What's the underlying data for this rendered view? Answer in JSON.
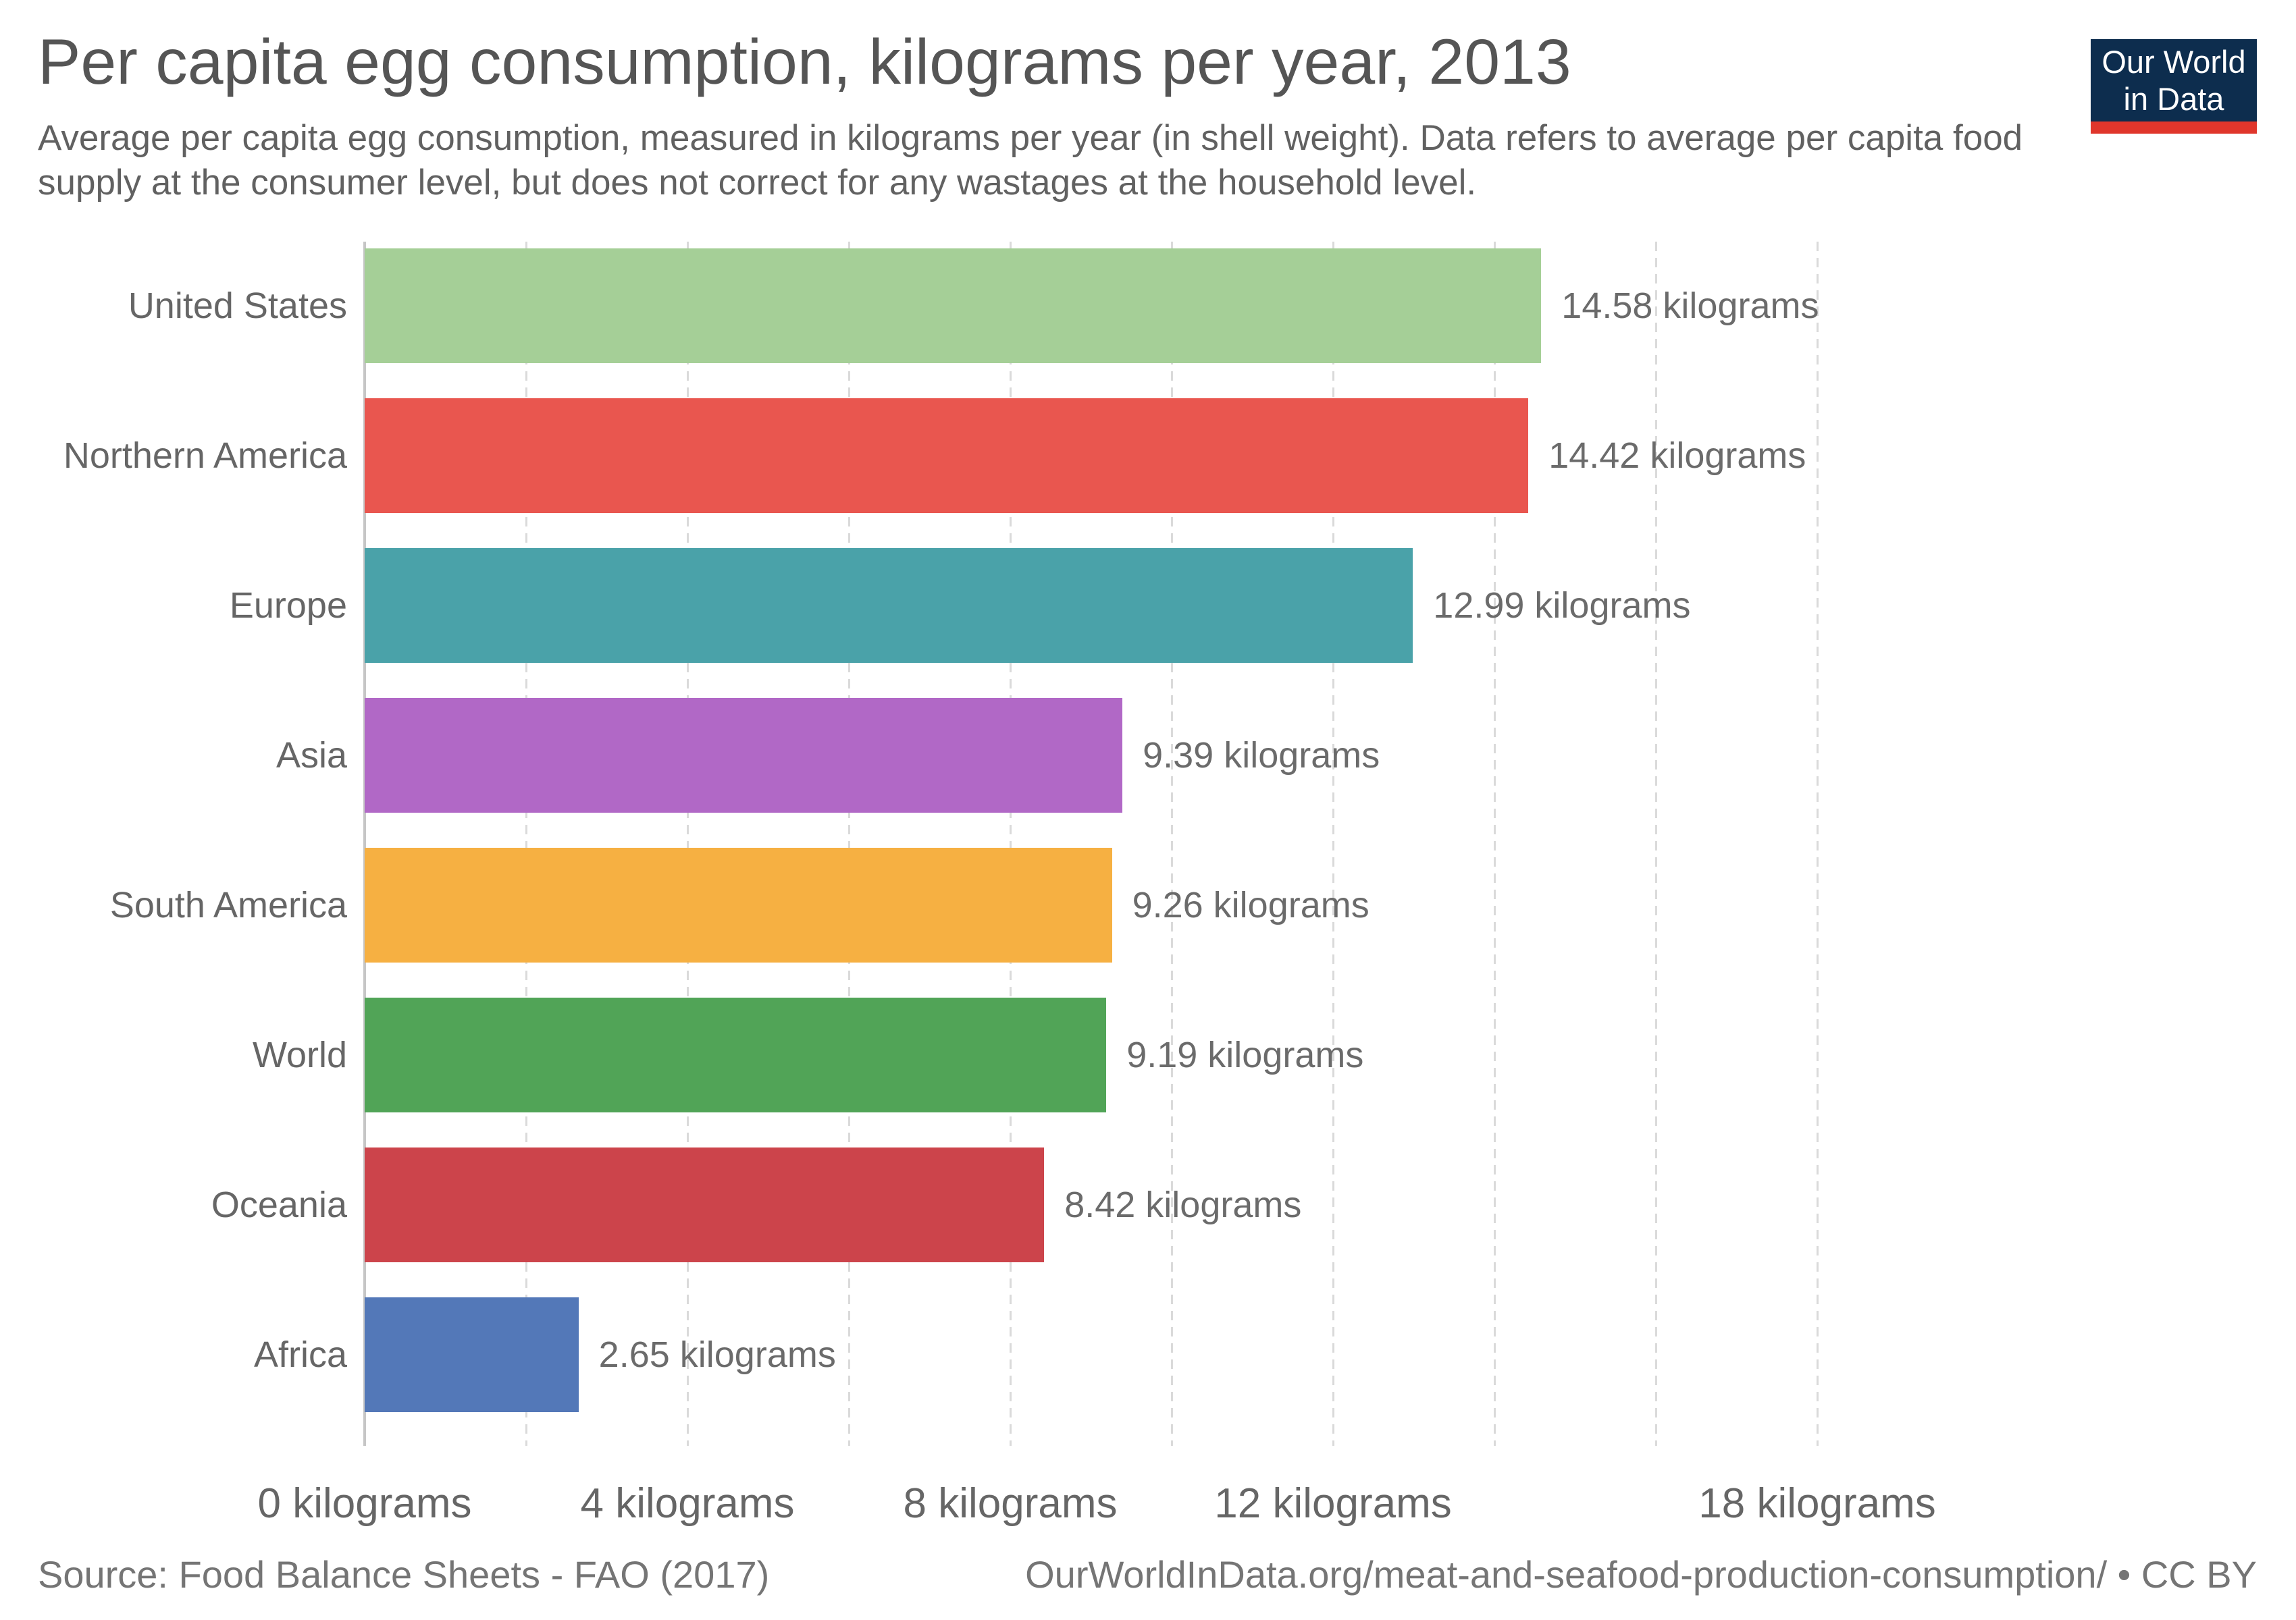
{
  "header": {
    "title": "Per capita egg consumption, kilograms per year, 2013",
    "subtitle": "Average per capita egg consumption, measured in kilograms per year (in shell weight). Data refers to average per capita food supply at the consumer level, but does not correct for any wastages at the household level."
  },
  "logo": {
    "line1": "Our World",
    "line2": "in Data",
    "bg_color": "#0d2d4e",
    "accent_color": "#e0362c"
  },
  "chart_data": {
    "type": "bar",
    "orientation": "horizontal",
    "title": "Per capita egg consumption, kilograms per year, 2013",
    "unit": "kilograms",
    "year": "2013",
    "categories": [
      "United States",
      "Northern America",
      "Europe",
      "Asia",
      "South America",
      "World",
      "Oceania",
      "Africa"
    ],
    "values": [
      14.58,
      14.42,
      12.99,
      9.39,
      9.26,
      9.19,
      8.42,
      2.65
    ],
    "value_labels": [
      "14.58 kilograms",
      "14.42 kilograms",
      "12.99 kilograms",
      "9.39 kilograms",
      "9.26 kilograms",
      "9.19 kilograms",
      "8.42 kilograms",
      "2.65 kilograms"
    ],
    "bar_colors": [
      "#a5cf97",
      "#e9564f",
      "#4aa2a9",
      "#b168c6",
      "#f6b042",
      "#51a457",
      "#cc444b",
      "#5378b8"
    ],
    "xlim": [
      0,
      18
    ],
    "x_ticks": [
      {
        "value": 0,
        "label": "0 kilograms"
      },
      {
        "value": 4,
        "label": "4 kilograms"
      },
      {
        "value": 8,
        "label": "8 kilograms"
      },
      {
        "value": 12,
        "label": "12 kilograms"
      },
      {
        "value": 18,
        "label": "18 kilograms"
      }
    ],
    "gridline_step": 2,
    "grid": true,
    "legend": "none"
  },
  "footer": {
    "source": "Source: Food Balance Sheets - FAO (2017)",
    "link": "OurWorldInData.org/meat-and-seafood-production-consumption/ • CC BY"
  }
}
